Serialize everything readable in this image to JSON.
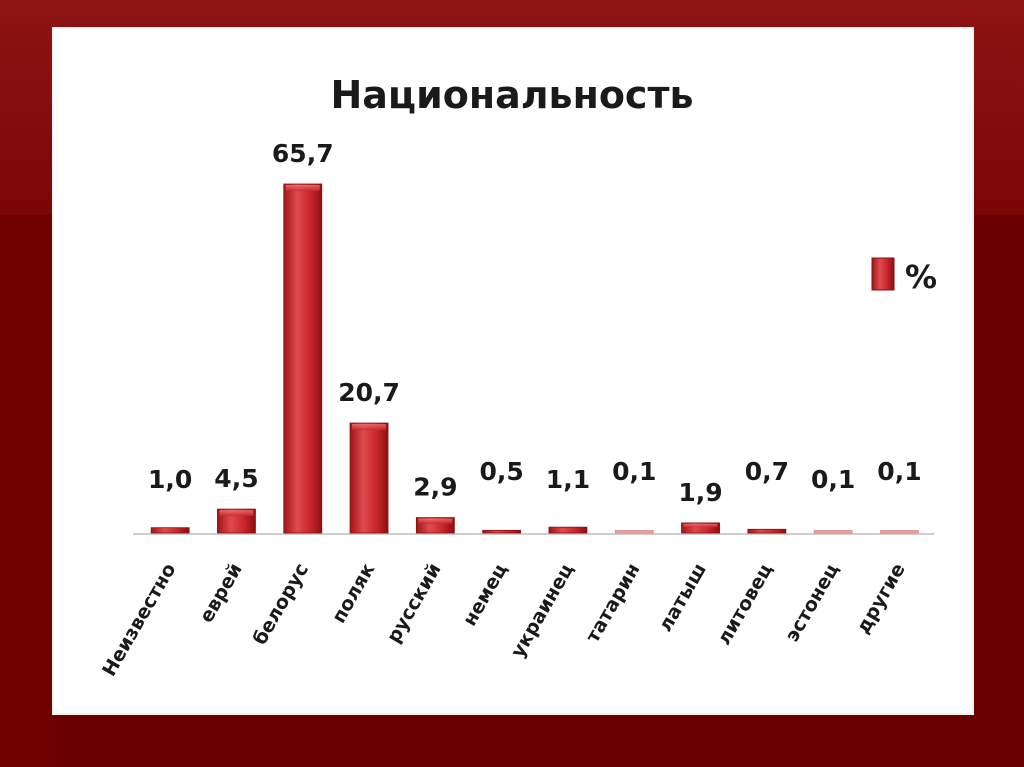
{
  "chart_data": {
    "type": "bar",
    "title": "Национальность",
    "categories": [
      "Неизвестно",
      "еврей",
      "белорус",
      "поляк",
      "русский",
      "немец",
      "украинец",
      "татарин",
      "латыш",
      "литовец",
      "эстонец",
      "другие"
    ],
    "values": [
      1.0,
      4.5,
      65.7,
      20.7,
      2.9,
      0.5,
      1.1,
      0.1,
      1.9,
      0.7,
      0.1,
      0.1
    ],
    "value_labels": [
      "1,0",
      "4,5",
      "65,7",
      "20,7",
      "2,9",
      "0,5",
      "1,1",
      "0,1",
      "1,9",
      "0,7",
      "0,1",
      "0,1"
    ],
    "series": [
      {
        "name": "%",
        "color": "#c8262b"
      }
    ],
    "legend": "right",
    "grid": false
  },
  "colors": {
    "bar": "#c8262b",
    "bar_light": "#e8595c",
    "bar_dark": "#8e1014",
    "background": "#6e0000",
    "panel": "#ffffff"
  }
}
